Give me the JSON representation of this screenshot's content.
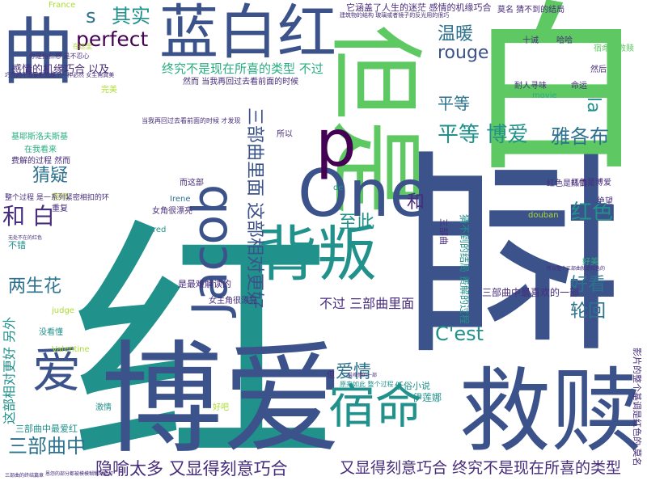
{
  "colors": {
    "purple": "#440154",
    "indigo": "#472d7b",
    "blue": "#3b528b",
    "steel": "#2c728e",
    "teal": "#21918c",
    "sea": "#28ae80",
    "green": "#5ec962",
    "lime": "#addc30",
    "yellow": "#c8d62a"
  },
  "words": [
    {
      "text": "红",
      "color": "teal"
    },
    {
      "text": "蓝",
      "color": "blue"
    },
    {
      "text": "白",
      "color": "green"
    },
    {
      "text": "博爱",
      "color": "blue"
    },
    {
      "text": "救赎",
      "color": "blue"
    },
    {
      "text": "蓝白红",
      "color": "blue"
    },
    {
      "text": "但是",
      "color": "green"
    },
    {
      "text": "One",
      "color": "blue"
    },
    {
      "text": "Jacob",
      "color": "blue"
    },
    {
      "text": "背叛",
      "color": "teal"
    },
    {
      "text": "宿命",
      "color": "teal"
    },
    {
      "text": "爱",
      "color": "blue"
    },
    {
      "text": "曲",
      "color": "blue"
    },
    {
      "text": "p",
      "color": "purple"
    },
    {
      "text": "perfect",
      "color": "purple"
    },
    {
      "text": "其实",
      "color": "teal"
    },
    {
      "text": "s",
      "color": "steel"
    },
    {
      "text": "温暖",
      "color": "steel"
    },
    {
      "text": "rouge",
      "color": "blue"
    },
    {
      "text": "平等",
      "color": "steel"
    },
    {
      "text": "平等 博爱",
      "color": "teal"
    },
    {
      "text": "雅各布",
      "color": "steel"
    },
    {
      "text": "la",
      "color": "teal"
    },
    {
      "text": "猜疑",
      "color": "steel"
    },
    {
      "text": "和 白",
      "color": "indigo"
    },
    {
      "text": "三部曲里面 这部相对更好",
      "color": "blue"
    },
    {
      "text": "红色",
      "color": "teal"
    },
    {
      "text": "至此",
      "color": "teal"
    },
    {
      "text": "和",
      "color": "indigo"
    },
    {
      "text": "两生花",
      "color": "steel"
    },
    {
      "text": "好看",
      "color": "steel"
    },
    {
      "text": "轮回",
      "color": "steel"
    },
    {
      "text": "C'est",
      "color": "teal"
    },
    {
      "text": "爱情",
      "color": "steel"
    },
    {
      "text": "三部曲中",
      "color": "steel"
    },
    {
      "text": "隐喻太多 又显得刻意巧合",
      "color": "indigo"
    },
    {
      "text": "又显得刻意巧合 终究不是现在所喜的类型",
      "color": "indigo"
    },
    {
      "text": "终究不是现在所喜的类型 不过",
      "color": "sea"
    },
    {
      "text": "感情的机缘巧合 以及",
      "color": "indigo"
    },
    {
      "text": "不过 三部曲里面",
      "color": "indigo"
    },
    {
      "text": "这部相对更好 另外",
      "color": "teal"
    },
    {
      "text": "三部曲中最爱红",
      "color": "teal"
    },
    {
      "text": "不错",
      "color": "teal"
    },
    {
      "text": "猜不到的结局 费解的过程",
      "color": "teal"
    },
    {
      "text": "三部曲中最喜欢的一部",
      "color": "indigo"
    },
    {
      "text": "女主角很漂亮",
      "color": "indigo"
    },
    {
      "text": "是最难解读的",
      "color": "indigo"
    },
    {
      "text": "France",
      "color": "lime"
    },
    {
      "text": "完美",
      "color": "lime"
    },
    {
      "text": "movie",
      "color": "sea"
    },
    {
      "text": "judge",
      "color": "lime"
    },
    {
      "text": "Valentine",
      "color": "lime"
    },
    {
      "text": "Irene",
      "color": "steel"
    },
    {
      "text": "red",
      "color": "teal"
    },
    {
      "text": "douban",
      "color": "lime"
    },
    {
      "text": "激情",
      "color": "teal"
    },
    {
      "text": "好吧",
      "color": "lime"
    },
    {
      "text": "伊莲娜",
      "color": "teal"
    },
    {
      "text": "低俗小说",
      "color": "teal"
    },
    {
      "text": "没看懂",
      "color": "teal"
    },
    {
      "text": "红色是热情",
      "color": "indigo"
    },
    {
      "text": "红色是博爱",
      "color": "indigo"
    },
    {
      "text": "命运",
      "color": "indigo"
    },
    {
      "text": "耐人寻味",
      "color": "indigo"
    },
    {
      "text": "十诫",
      "color": "indigo"
    },
    {
      "text": "哈哈",
      "color": "indigo"
    },
    {
      "text": "宿命的救赎",
      "color": "green"
    },
    {
      "text": "莫名 猜不到的结局",
      "color": "indigo"
    },
    {
      "text": "然后",
      "color": "indigo"
    },
    {
      "text": "好美",
      "color": "sea"
    },
    {
      "text": "悲悯",
      "color": "lime"
    },
    {
      "text": "重复",
      "color": "indigo"
    },
    {
      "text": "在我看来",
      "color": "sea"
    },
    {
      "text": "基耶斯洛夫斯基",
      "color": "sea"
    },
    {
      "text": "费解的过程 然而",
      "color": "indigo"
    },
    {
      "text": "整个过程 是一系列紧密相扣的环",
      "color": "indigo"
    },
    {
      "text": "然而 当我再回过去看前面的时候",
      "color": "indigo"
    },
    {
      "text": "当我再回过去看前面的时候 才发现",
      "color": "indigo"
    },
    {
      "text": "所以",
      "color": "indigo"
    },
    {
      "text": "而这部",
      "color": "indigo"
    },
    {
      "text": "女角很漂亮",
      "color": "indigo"
    },
    {
      "text": "de",
      "color": "teal"
    },
    {
      "text": "但",
      "color": "indigo"
    },
    {
      "text": "原来如此 整个过程",
      "color": "teal"
    },
    {
      "text": "它涵盖了人生的迷茫 感情的机缘巧合",
      "color": "indigo"
    },
    {
      "text": "建筑物的结构 玻璃或者镜子的反光用的很巧",
      "color": "indigo"
    },
    {
      "text": "巧合的不断累积就成了一种必然 女主角真美",
      "color": "indigo"
    },
    {
      "text": "在这里",
      "color": "lime"
    },
    {
      "text": "你是指仁慈 是不忍心",
      "color": "indigo"
    },
    {
      "text": "恩怨的部分都被模模糊糊地对打",
      "color": "indigo"
    },
    {
      "text": "三部曲的终结篇章",
      "color": "indigo"
    },
    {
      "text": "无处不在的红色",
      "color": "indigo"
    },
    {
      "text": "所以整个三部曲就是红色的",
      "color": "indigo"
    },
    {
      "text": "最难懂的一部",
      "color": "indigo"
    },
    {
      "text": "影片的整个基调是红色的 莫名",
      "color": "indigo"
    },
    {
      "text": "三部曲",
      "color": "indigo"
    },
    {
      "text": "绝望",
      "color": "indigo"
    }
  ]
}
